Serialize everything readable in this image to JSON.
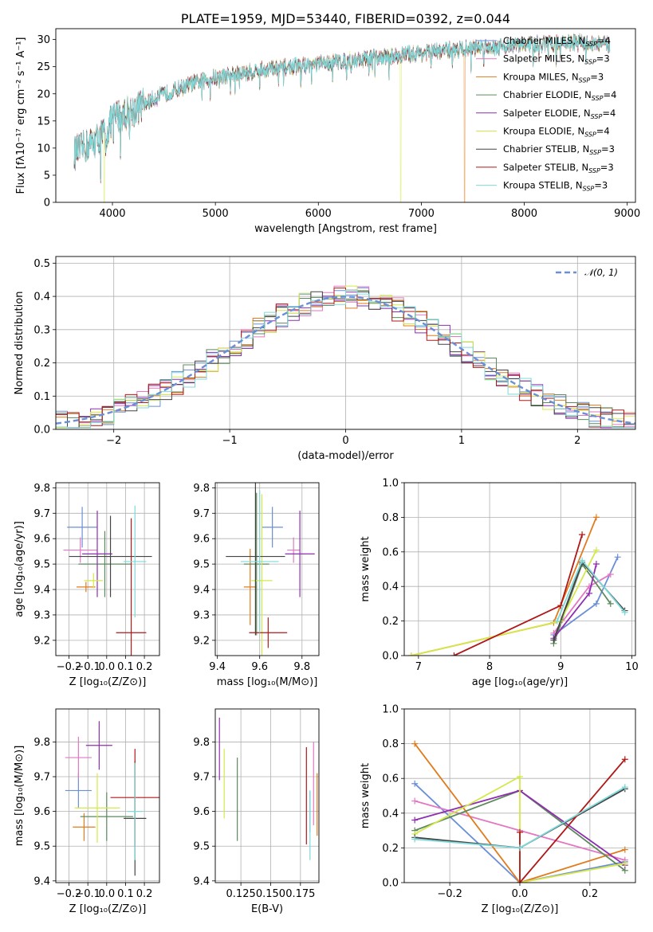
{
  "colors": {
    "Chabrier MILES": "#6a8fd6",
    "Salpeter MILES": "#e377c2",
    "Kroupa MILES": "#e07b1e",
    "Chabrier ELODIE": "#5c8a5c",
    "Salpeter ELODIE": "#8e2fb0",
    "Kroupa ELODIE": "#d4e84a",
    "Chabrier STELIB": "#444444",
    "Salpeter STELIB": "#b01818",
    "Kroupa STELIB": "#7fd9d9"
  },
  "chart_data": [
    {
      "id": "spectrum",
      "type": "line",
      "title": "PLATE=1959, MJD=53440, FIBERID=0392, z=0.044",
      "xlabel": "wavelength [Angstrom, rest frame]",
      "ylabel": "Flux [fλ10⁻¹⁷ erg cm⁻² s⁻¹ A⁻¹]",
      "xlim": [
        3450,
        9080
      ],
      "ylim": [
        0,
        32
      ],
      "xticks": [
        4000,
        5000,
        6000,
        7000,
        8000,
        9000
      ],
      "yticks": [
        0,
        5,
        10,
        15,
        20,
        25,
        30
      ],
      "grid": false,
      "legend_position": "top-right",
      "legend": [
        {
          "text": "Chabrier MILES, N",
          "sub": "SSP",
          "rest": "=4"
        },
        {
          "text": "Salpeter MILES, N",
          "sub": "SSP",
          "rest": "=3"
        },
        {
          "text": "Kroupa MILES, N",
          "sub": "SSP",
          "rest": "=3"
        },
        {
          "text": "Chabrier ELODIE, N",
          "sub": "SSP",
          "rest": "=4"
        },
        {
          "text": "Salpeter ELODIE, N",
          "sub": "SSP",
          "rest": "=4"
        },
        {
          "text": "Kroupa ELODIE, N",
          "sub": "SSP",
          "rest": "=4"
        },
        {
          "text": "Chabrier STELIB, N",
          "sub": "SSP",
          "rest": "=3"
        },
        {
          "text": "Salpeter STELIB, N",
          "sub": "SSP",
          "rest": "=3"
        },
        {
          "text": "Kroupa STELIB, N",
          "sub": "SSP",
          "rest": "=3"
        }
      ],
      "x_range_data": [
        3630,
        8830
      ],
      "continuum_points": [
        [
          3630,
          9
        ],
        [
          3800,
          11
        ],
        [
          3950,
          13
        ],
        [
          4000,
          15.5
        ],
        [
          4200,
          17
        ],
        [
          4500,
          20
        ],
        [
          4800,
          22
        ],
        [
          5000,
          23
        ],
        [
          5500,
          24.5
        ],
        [
          6000,
          25.5
        ],
        [
          6500,
          26.5
        ],
        [
          7000,
          27.5
        ],
        [
          7500,
          28.5
        ],
        [
          8000,
          29
        ],
        [
          8500,
          29.5
        ],
        [
          8830,
          29
        ]
      ],
      "model_cutoffs": [
        {
          "series": "Kroupa ELODIE",
          "x": 6800
        },
        {
          "series": "Kroupa MILES",
          "x": 7420
        },
        {
          "series": "Kroupa ELODIE",
          "x": 3920
        }
      ]
    },
    {
      "id": "residuals",
      "type": "line",
      "xlabel": "(data-model)/error",
      "ylabel": "Normed distribution",
      "xlim": [
        -2.5,
        2.5
      ],
      "ylim": [
        0,
        0.52
      ],
      "xticks": [
        -2,
        -1,
        0,
        1,
        2
      ],
      "yticks": [
        0.0,
        0.1,
        0.2,
        0.3,
        0.4,
        0.5
      ],
      "grid": true,
      "legend_position": "top-right",
      "legend": [
        {
          "text": "𝒩(0, 1)"
        }
      ],
      "reference_curve": {
        "name": "𝒩(0, 1)",
        "mean": 0,
        "std": 1,
        "color": "#6a8fd6",
        "dashed": true
      },
      "bin_width": 0.1
    },
    {
      "id": "age-vs-Z",
      "type": "scatter",
      "xlabel": "Z [log₁₀(Z/Z⊙)]",
      "ylabel": "age  [log₁₀(age/yr)]",
      "xlim": [
        -0.27,
        0.28
      ],
      "ylim": [
        9.14,
        9.82
      ],
      "xticks": [
        -0.2,
        -0.1,
        0.0,
        0.1,
        0.2
      ],
      "yticks": [
        9.2,
        9.3,
        9.4,
        9.5,
        9.6,
        9.7,
        9.8
      ],
      "grid": true,
      "points": [
        {
          "series": "Chabrier MILES",
          "x": -0.13,
          "y": 9.645,
          "xerr": 0.08,
          "yerr": 0.08
        },
        {
          "series": "Salpeter MILES",
          "x": -0.14,
          "y": 9.555,
          "xerr": 0.09,
          "yerr": 0.05
        },
        {
          "series": "Kroupa MILES",
          "x": -0.11,
          "y": 9.41,
          "xerr": 0.05,
          "yerr": 0.02
        },
        {
          "series": "Chabrier ELODIE",
          "x": -0.01,
          "y": 9.5,
          "xerr": 0.14,
          "yerr": 0.13
        },
        {
          "series": "Salpeter ELODIE",
          "x": -0.05,
          "y": 9.54,
          "xerr": 0.08,
          "yerr": 0.17
        },
        {
          "series": "Kroupa ELODIE",
          "x": -0.07,
          "y": 9.435,
          "xerr": 0.05,
          "yerr": 0.03
        },
        {
          "series": "Chabrier STELIB",
          "x": 0.02,
          "y": 9.53,
          "xerr": 0.22,
          "yerr": 0.16
        },
        {
          "series": "Salpeter STELIB",
          "x": 0.13,
          "y": 9.23,
          "xerr": 0.08,
          "yerr": 0.45
        },
        {
          "series": "Kroupa STELIB",
          "x": 0.15,
          "y": 9.51,
          "xerr": 0.06,
          "yerr": 0.22
        }
      ]
    },
    {
      "id": "age-vs-mass",
      "type": "scatter",
      "xlabel": "mass [log₁₀(M/M⊙)]",
      "ylabel": "",
      "xlim": [
        9.39,
        9.88
      ],
      "ylim": [
        9.14,
        9.82
      ],
      "xticks": [
        9.4,
        9.6,
        9.8
      ],
      "yticks": [
        9.2,
        9.3,
        9.4,
        9.5,
        9.6,
        9.7,
        9.8
      ],
      "grid": true,
      "points": [
        {
          "series": "Chabrier MILES",
          "x": 9.66,
          "y": 9.645,
          "xerr": 0.05,
          "yerr": 0.08
        },
        {
          "series": "Salpeter MILES",
          "x": 9.76,
          "y": 9.555,
          "xerr": 0.03,
          "yerr": 0.05
        },
        {
          "series": "Kroupa MILES",
          "x": 9.555,
          "y": 9.41,
          "xerr": 0.03,
          "yerr": 0.15
        },
        {
          "series": "Chabrier ELODIE",
          "x": 9.585,
          "y": 9.5,
          "xerr": 0.06,
          "yerr": 0.28
        },
        {
          "series": "Salpeter ELODIE",
          "x": 9.79,
          "y": 9.54,
          "xerr": 0.07,
          "yerr": 0.17
        },
        {
          "series": "Kroupa ELODIE",
          "x": 9.61,
          "y": 9.435,
          "xerr": 0.05,
          "yerr": 0.34
        },
        {
          "series": "Chabrier STELIB",
          "x": 9.58,
          "y": 9.53,
          "xerr": 0.14,
          "yerr": 0.31
        },
        {
          "series": "Salpeter STELIB",
          "x": 9.64,
          "y": 9.23,
          "xerr": 0.09,
          "yerr": 0.06
        },
        {
          "series": "Kroupa STELIB",
          "x": 9.6,
          "y": 9.51,
          "xerr": 0.09,
          "yerr": 0.28
        }
      ]
    },
    {
      "id": "massweight-vs-age",
      "type": "line",
      "xlabel": "age  [log₁₀(age/yr)]",
      "ylabel": "mass weight",
      "xlim": [
        6.8,
        10.05
      ],
      "ylim": [
        0,
        1.0
      ],
      "xticks": [
        7,
        8,
        9,
        10
      ],
      "yticks": [
        0.0,
        0.2,
        0.4,
        0.6,
        0.8,
        1.0
      ],
      "grid": true,
      "series": [
        {
          "name": "Chabrier MILES",
          "x": [
            8.9,
            9.5,
            9.8
          ],
          "y": [
            0.12,
            0.3,
            0.57
          ]
        },
        {
          "name": "Salpeter MILES",
          "x": [
            8.9,
            9.4,
            9.7
          ],
          "y": [
            0.13,
            0.4,
            0.47
          ]
        },
        {
          "name": "Kroupa MILES",
          "x": [
            6.9,
            8.9,
            9.5
          ],
          "y": [
            0.0,
            0.19,
            0.8
          ]
        },
        {
          "name": "Chabrier ELODIE",
          "x": [
            8.9,
            9.3,
            9.7
          ],
          "y": [
            0.07,
            0.53,
            0.3
          ]
        },
        {
          "name": "Salpeter ELODIE",
          "x": [
            8.9,
            9.4,
            9.5
          ],
          "y": [
            0.1,
            0.36,
            0.53
          ]
        },
        {
          "name": "Kroupa ELODIE",
          "x": [
            6.9,
            9.0,
            9.5
          ],
          "y": [
            0.0,
            0.2,
            0.61
          ]
        },
        {
          "name": "Chabrier STELIB",
          "x": [
            8.9,
            9.3,
            9.9
          ],
          "y": [
            0.09,
            0.54,
            0.26
          ]
        },
        {
          "name": "Salpeter STELIB",
          "x": [
            7.5,
            9.0,
            9.3
          ],
          "y": [
            0.0,
            0.29,
            0.7
          ]
        },
        {
          "name": "Kroupa STELIB",
          "x": [
            8.95,
            9.3,
            9.9
          ],
          "y": [
            0.2,
            0.55,
            0.25
          ]
        }
      ]
    },
    {
      "id": "mass-vs-Z",
      "type": "scatter",
      "xlabel": "Z [log₁₀(Z/Z⊙)]",
      "ylabel": "mass [log₁₀(M/M⊙)]",
      "xlim": [
        -0.27,
        0.28
      ],
      "ylim": [
        9.395,
        9.895
      ],
      "xticks": [
        -0.2,
        -0.1,
        0.0,
        0.1,
        0.2
      ],
      "yticks": [
        9.4,
        9.5,
        9.6,
        9.7,
        9.8
      ],
      "grid": true,
      "points": [
        {
          "series": "Chabrier MILES",
          "x": -0.15,
          "y": 9.66,
          "xerr": 0.07,
          "yerr": 0.05
        },
        {
          "series": "Salpeter MILES",
          "x": -0.15,
          "y": 9.755,
          "xerr": 0.07,
          "yerr": 0.06
        },
        {
          "series": "Kroupa MILES",
          "x": -0.12,
          "y": 9.555,
          "xerr": 0.06,
          "yerr": 0.04
        },
        {
          "series": "Chabrier ELODIE",
          "x": 0.0,
          "y": 9.585,
          "xerr": 0.14,
          "yerr": 0.07
        },
        {
          "series": "Salpeter ELODIE",
          "x": -0.04,
          "y": 9.79,
          "xerr": 0.07,
          "yerr": 0.07
        },
        {
          "series": "Kroupa ELODIE",
          "x": -0.05,
          "y": 9.61,
          "xerr": 0.12,
          "yerr": 0.1
        },
        {
          "series": "Chabrier STELIB",
          "x": 0.15,
          "y": 9.58,
          "xerr": 0.06,
          "yerr": 0.165
        },
        {
          "series": "Salpeter STELIB",
          "x": 0.15,
          "y": 9.64,
          "xerr": 0.13,
          "yerr": 0.14
        },
        {
          "series": "Kroupa STELIB",
          "x": 0.15,
          "y": 9.6,
          "xerr": 0.04,
          "yerr": 0.14
        }
      ]
    },
    {
      "id": "mass-vs-EBV",
      "type": "scatter",
      "xlabel": "E(B-V)",
      "ylabel": "",
      "xlim": [
        0.1035,
        0.1905
      ],
      "ylim": [
        9.395,
        9.895
      ],
      "xticks": [
        0.125,
        0.15,
        0.175
      ],
      "xtick_labels": [
        "0.125",
        "0.150",
        "0.175"
      ],
      "yticks": [
        9.4,
        9.5,
        9.6,
        9.7,
        9.8
      ],
      "grid": true,
      "points": [
        {
          "series": "Salpeter ELODIE",
          "x": 0.107,
          "y": 9.78,
          "xerr": 0,
          "yerr": 0.09
        },
        {
          "series": "Kroupa ELODIE",
          "x": 0.111,
          "y": 9.68,
          "xerr": 0,
          "yerr": 0.1
        },
        {
          "series": "Chabrier ELODIE",
          "x": 0.122,
          "y": 9.635,
          "xerr": 0,
          "yerr": 0.12
        },
        {
          "series": "Salpeter STELIB",
          "x": 0.18,
          "y": 9.645,
          "xerr": 0,
          "yerr": 0.14
        },
        {
          "series": "Chabrier MILES",
          "x": 0.183,
          "y": 9.6,
          "xerr": 0,
          "yerr": 0.06
        },
        {
          "series": "Kroupa STELIB",
          "x": 0.183,
          "y": 9.56,
          "xerr": 0,
          "yerr": 0.1
        },
        {
          "series": "Salpeter MILES",
          "x": 0.186,
          "y": 9.68,
          "xerr": 0,
          "yerr": 0.12
        },
        {
          "series": "Kroupa MILES",
          "x": 0.189,
          "y": 9.62,
          "xerr": 0,
          "yerr": 0.09
        }
      ]
    },
    {
      "id": "massweight-vs-Z",
      "type": "line",
      "xlabel": "Z [log₁₀(Z/Z⊙)]",
      "ylabel": "mass weight",
      "xlim": [
        -0.33,
        0.33
      ],
      "ylim": [
        0,
        1.0
      ],
      "xticks": [
        -0.2,
        0.0,
        0.2
      ],
      "yticks": [
        0.0,
        0.2,
        0.4,
        0.6,
        0.8,
        1.0
      ],
      "grid": true,
      "series": [
        {
          "name": "Chabrier MILES",
          "x": [
            -0.3,
            0.0,
            0.3
          ],
          "y": [
            0.57,
            0.0,
            0.12
          ]
        },
        {
          "name": "Salpeter MILES",
          "x": [
            -0.3,
            0.0,
            0.3
          ],
          "y": [
            0.47,
            0.3,
            0.13
          ]
        },
        {
          "name": "Kroupa MILES",
          "x": [
            -0.3,
            0.0,
            0.3
          ],
          "y": [
            0.8,
            0.0,
            0.19
          ]
        },
        {
          "name": "Chabrier ELODIE",
          "x": [
            -0.3,
            0.0,
            0.3
          ],
          "y": [
            0.3,
            0.53,
            0.07
          ]
        },
        {
          "name": "Salpeter ELODIE",
          "x": [
            -0.3,
            0.0,
            0.3
          ],
          "y": [
            0.36,
            0.53,
            0.1
          ]
        },
        {
          "name": "Kroupa ELODIE",
          "x": [
            -0.3,
            0.0,
            0.0,
            0.3
          ],
          "y": [
            0.28,
            0.61,
            0.0,
            0.11
          ]
        },
        {
          "name": "Chabrier STELIB",
          "x": [
            -0.3,
            0.0,
            0.3
          ],
          "y": [
            0.26,
            0.2,
            0.54
          ]
        },
        {
          "name": "Salpeter STELIB",
          "x": [
            0.0,
            0.0,
            0.3
          ],
          "y": [
            0.29,
            0.0,
            0.71
          ]
        },
        {
          "name": "Kroupa STELIB",
          "x": [
            -0.3,
            0.0,
            0.3
          ],
          "y": [
            0.25,
            0.2,
            0.55
          ]
        }
      ]
    }
  ]
}
